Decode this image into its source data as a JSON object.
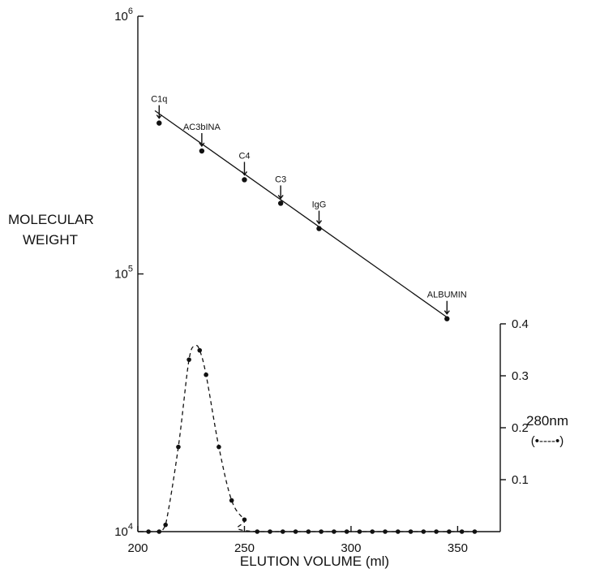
{
  "chart_data": {
    "type": "scatter",
    "xlabel": "ELUTION VOLUME (ml)",
    "ylabel_left_line1": "MOLECULAR",
    "ylabel_left_line2": "WEIGHT",
    "ylabel_right_line1": "280nm",
    "ylabel_right_line2": "(•----•)",
    "xlim": [
      200,
      370
    ],
    "ylim_left": [
      10000,
      1000000
    ],
    "yscale_left": "log",
    "ylim_right": [
      0,
      0.4
    ],
    "x_ticks": [
      {
        "value": 200,
        "label": "200"
      },
      {
        "value": 250,
        "label": "250"
      },
      {
        "value": 300,
        "label": "300"
      },
      {
        "value": 350,
        "label": "350"
      }
    ],
    "y_left_ticks": [
      {
        "value": 10000,
        "base": "10",
        "exp": "4"
      },
      {
        "value": 100000,
        "base": "10",
        "exp": "5"
      },
      {
        "value": 1000000,
        "base": "10",
        "exp": "6"
      }
    ],
    "y_right_ticks": [
      {
        "value": 0.1,
        "label": "0.1"
      },
      {
        "value": 0.2,
        "label": "0.2"
      },
      {
        "value": 0.3,
        "label": "0.3"
      },
      {
        "value": 0.4,
        "label": "0.4"
      }
    ],
    "calibration": {
      "axis": "left",
      "line": [
        {
          "x": 208,
          "y": 430000
        },
        {
          "x": 346,
          "y": 67000
        }
      ],
      "points": [
        {
          "label": "C1q",
          "x": 210,
          "y": 385000
        },
        {
          "label": "AC3bINA",
          "x": 230,
          "y": 300000
        },
        {
          "label": "C4",
          "x": 250,
          "y": 232000
        },
        {
          "label": "C3",
          "x": 267,
          "y": 188000
        },
        {
          "label": "IgG",
          "x": 285,
          "y": 150000
        },
        {
          "label": "ALBUMIN",
          "x": 345,
          "y": 67000
        }
      ]
    },
    "absorbance": {
      "axis": "right",
      "points": [
        {
          "x": 205,
          "y": 0.0
        },
        {
          "x": 210,
          "y": 0.0
        },
        {
          "x": 213,
          "y": 0.013
        },
        {
          "x": 219,
          "y": 0.163
        },
        {
          "x": 224,
          "y": 0.331
        },
        {
          "x": 229,
          "y": 0.349
        },
        {
          "x": 232,
          "y": 0.302
        },
        {
          "x": 238,
          "y": 0.163
        },
        {
          "x": 244,
          "y": 0.06
        },
        {
          "x": 250,
          "y": 0.023
        },
        {
          "x": 256,
          "y": 0.0
        },
        {
          "x": 262,
          "y": 0.0
        },
        {
          "x": 268,
          "y": 0.0
        },
        {
          "x": 274,
          "y": 0.0
        },
        {
          "x": 280,
          "y": 0.0
        },
        {
          "x": 286,
          "y": 0.0
        },
        {
          "x": 292,
          "y": 0.0
        },
        {
          "x": 298,
          "y": 0.0
        },
        {
          "x": 304,
          "y": 0.0
        },
        {
          "x": 310,
          "y": 0.0
        },
        {
          "x": 316,
          "y": 0.0
        },
        {
          "x": 322,
          "y": 0.0
        },
        {
          "x": 328,
          "y": 0.0
        },
        {
          "x": 334,
          "y": 0.0
        },
        {
          "x": 340,
          "y": 0.0
        },
        {
          "x": 346,
          "y": 0.0
        },
        {
          "x": 352,
          "y": 0.0
        },
        {
          "x": 358,
          "y": 0.0
        }
      ],
      "curve": [
        {
          "x": 205,
          "y": 0.0
        },
        {
          "x": 210,
          "y": 0.0
        },
        {
          "x": 213,
          "y": 0.013
        },
        {
          "x": 219,
          "y": 0.163
        },
        {
          "x": 224,
          "y": 0.331
        },
        {
          "x": 227,
          "y": 0.357
        },
        {
          "x": 229,
          "y": 0.349
        },
        {
          "x": 232,
          "y": 0.302
        },
        {
          "x": 238,
          "y": 0.163
        },
        {
          "x": 244,
          "y": 0.06
        },
        {
          "x": 250,
          "y": 0.023
        },
        {
          "x": 256,
          "y": 0.0
        },
        {
          "x": 358,
          "y": 0.0
        }
      ]
    }
  }
}
